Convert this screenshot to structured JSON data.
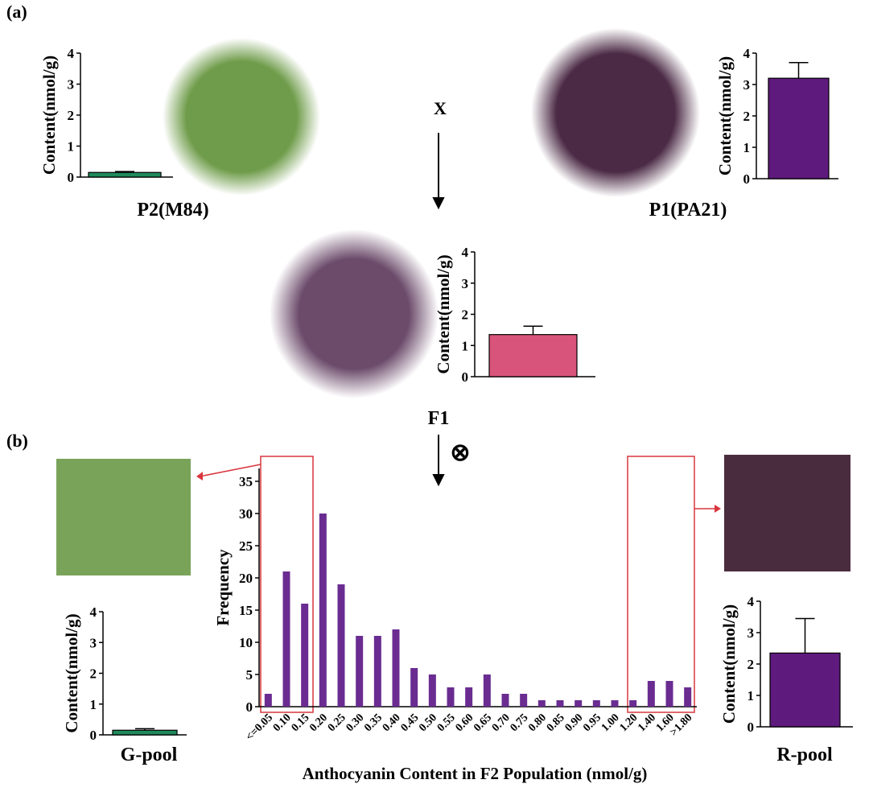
{
  "panel_labels": {
    "a": "(a)",
    "b": "(b)",
    "cross": "X",
    "f1": "F1",
    "self": "⊗"
  },
  "chart_data": [
    {
      "type": "bar",
      "label": "P2(M84)",
      "ylabel": "Content(nmol/g)",
      "categories": [
        null
      ],
      "values": [
        0.15
      ],
      "errors": [
        0.03
      ],
      "color": "#1f8a5b",
      "ylim": [
        0,
        4
      ],
      "yticks": [
        0,
        1,
        2,
        3,
        4
      ]
    },
    {
      "type": "bar",
      "label": "P1(PA21)",
      "ylabel": "Content(nmol/g)",
      "categories": [
        null
      ],
      "values": [
        3.2
      ],
      "errors": [
        0.5
      ],
      "color": "#5e1a7d",
      "ylim": [
        0,
        4
      ],
      "yticks": [
        0,
        1,
        2,
        3,
        4
      ]
    },
    {
      "type": "bar",
      "ylabel": "Content(nmol/g)",
      "categories": [
        null
      ],
      "values": [
        1.35
      ],
      "errors": [
        0.27
      ],
      "color": "#d9547a",
      "ylim": [
        0,
        4
      ],
      "yticks": [
        0,
        1,
        2,
        3,
        4
      ]
    },
    {
      "type": "histbar",
      "xlabel": "Anthocyanin Content in F2 Population (nmol/g)",
      "ylabel": "Frequency",
      "categories": [
        "<=0.05",
        "0.10",
        "0.15",
        "0.20",
        "0.25",
        "0.30",
        "0.35",
        "0.40",
        "0.45",
        "0.50",
        "0.55",
        "0.60",
        "0.65",
        "0.70",
        "0.75",
        "0.80",
        "0.85",
        "0.90",
        "0.95",
        "1.00",
        "1.20",
        "1.40",
        "1.60",
        ">1.80"
      ],
      "values": [
        2,
        21,
        16,
        30,
        19,
        11,
        11,
        12,
        6,
        5,
        3,
        3,
        5,
        2,
        2,
        1,
        1,
        1,
        1,
        1,
        1,
        4,
        4,
        3
      ],
      "color": "#6a2c91",
      "ylim": [
        0,
        37
      ],
      "yticks": [
        0,
        5,
        10,
        15,
        20,
        25,
        30,
        35
      ]
    },
    {
      "type": "bar",
      "label": "G-pool",
      "ylabel": "Content(nmol/g)",
      "categories": [
        null
      ],
      "values": [
        0.15
      ],
      "errors": [
        0.05
      ],
      "color": "#1f8a5b",
      "ylim": [
        0,
        4
      ],
      "yticks": [
        0,
        1,
        2,
        3,
        4
      ]
    },
    {
      "type": "bar",
      "label": "R-pool",
      "ylabel": "Content(nmol/g)",
      "categories": [
        null
      ],
      "values": [
        2.35
      ],
      "errors": [
        1.1
      ],
      "color": "#5e1a7d",
      "ylim": [
        0,
        4
      ],
      "yticks": [
        0,
        1,
        2,
        3,
        4
      ]
    }
  ]
}
